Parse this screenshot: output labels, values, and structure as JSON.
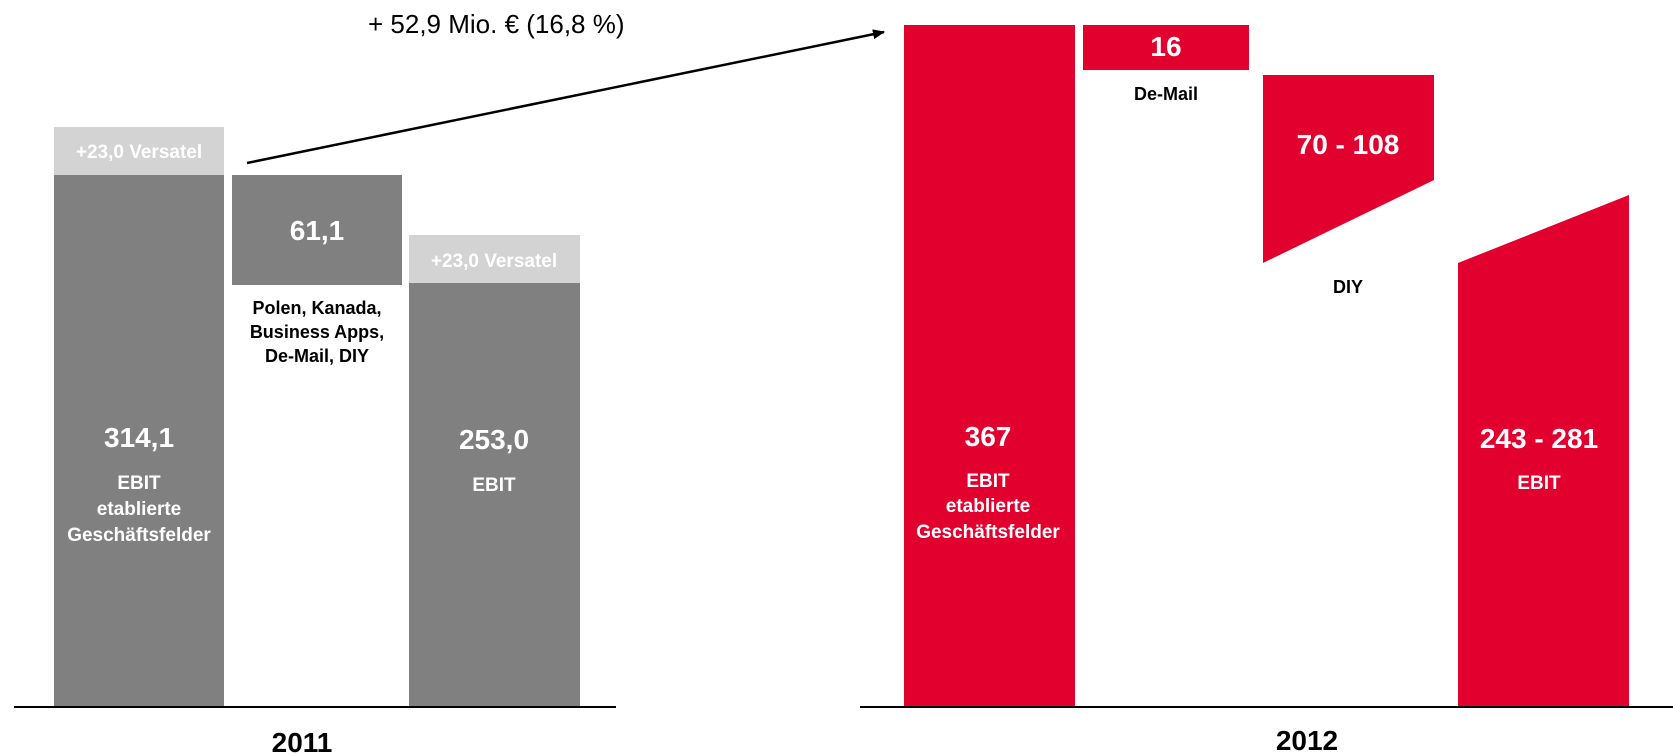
{
  "colors": {
    "bar_2011": "#808080",
    "versatel": "#d3d3d3",
    "bar_2012": "#e2002f",
    "text_on_bar": "#ffffff",
    "text_dark": "#000000",
    "baseline": "#000000"
  },
  "annotation": {
    "text": "+ 52,9 Mio. € (16,8 %)"
  },
  "chart_data": [
    {
      "type": "waterfall",
      "year_label": "2011",
      "bars": [
        {
          "value": "314,1",
          "label_lines": [
            "EBIT",
            "etablierte",
            "Geschäftsfelder"
          ],
          "addon": "+23,0 Versatel"
        },
        {
          "value": "61,1",
          "label_lines": [
            "Polen, Kanada,",
            "Business Apps,",
            "De-Mail, DIY"
          ]
        },
        {
          "value": "253,0",
          "label_lines": [
            "EBIT"
          ],
          "addon": "+23,0 Versatel"
        }
      ]
    },
    {
      "type": "waterfall",
      "year_label": "2012",
      "bars": [
        {
          "value": "367",
          "label_lines": [
            "EBIT",
            "etablierte",
            "Geschäftsfelder"
          ]
        },
        {
          "value": "16",
          "label_lines": [
            "De-Mail"
          ]
        },
        {
          "value": "70 - 108",
          "label_lines": [
            "DIY"
          ]
        },
        {
          "value": "243 - 281",
          "label_lines": [
            "EBIT"
          ]
        }
      ]
    }
  ]
}
